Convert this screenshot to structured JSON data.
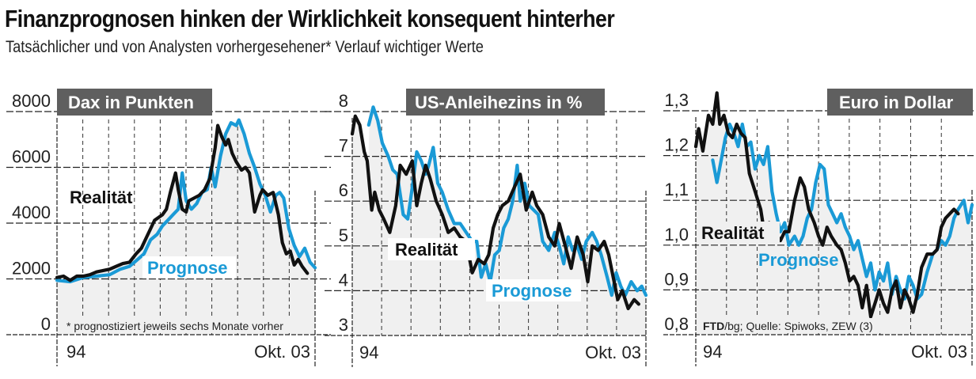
{
  "header": {
    "title": "Finanzprognosen hinken der Wirklichkeit konsequent hinterher",
    "subtitle": "Tatsächlicher und von Analysten vorhergesehener* Verlauf wichtiger Werte"
  },
  "colors": {
    "realitaet": "#111111",
    "prognose": "#1a9ad6",
    "badge": "#5f5f5f",
    "fill": "#f0f0f0"
  },
  "chart_data": [
    {
      "type": "line",
      "title": "Dax in Punkten",
      "xlabel": "",
      "ylabel": "",
      "x_start_label": "94",
      "x_end_label": "Okt. 03",
      "x_range": [
        1994.0,
        2003.79
      ],
      "ylim": [
        0,
        8000
      ],
      "yticks": [
        0,
        2000,
        4000,
        6000,
        8000
      ],
      "ytick_labels": [
        "0",
        "2000",
        "4000",
        "6000",
        "8000"
      ],
      "grid": true,
      "legend_labels": {
        "realitaet": "Realität",
        "prognose": "Prognose"
      },
      "footnote": "* prognostiziert jeweils sechs Monate vorher",
      "series": [
        {
          "name": "Realität",
          "x": [
            1994.0,
            1994.25,
            1994.5,
            1994.75,
            1995.0,
            1995.25,
            1995.5,
            1995.75,
            1996.0,
            1996.25,
            1996.5,
            1996.75,
            1997.0,
            1997.2,
            1997.4,
            1997.55,
            1997.7,
            1997.85,
            1998.0,
            1998.15,
            1998.3,
            1998.5,
            1998.6,
            1998.75,
            1998.9,
            1999.0,
            1999.2,
            1999.4,
            1999.6,
            1999.8,
            2000.0,
            2000.1,
            2000.25,
            2000.4,
            2000.5,
            2000.65,
            2000.8,
            2001.0,
            2001.15,
            2001.3,
            2001.5,
            2001.7,
            2001.8,
            2002.0,
            2002.2,
            2002.4,
            2002.55,
            2002.7,
            2002.85,
            2003.0,
            2003.15,
            2003.3,
            2003.5
          ],
          "values": [
            2050,
            2100,
            1950,
            2100,
            2100,
            2150,
            2250,
            2300,
            2350,
            2450,
            2550,
            2600,
            2900,
            3100,
            3500,
            3800,
            4100,
            4200,
            4300,
            4500,
            5100,
            5800,
            5200,
            4500,
            4400,
            4800,
            4900,
            5000,
            5200,
            5600,
            6700,
            7500,
            7100,
            6800,
            7000,
            6500,
            6200,
            5900,
            6000,
            5800,
            4400,
            5000,
            5200,
            5000,
            5100,
            4300,
            3300,
            2900,
            3000,
            2500,
            2700,
            2450,
            2200
          ]
        },
        {
          "name": "Prognose",
          "x": [
            1994.0,
            1994.5,
            1995.0,
            1995.5,
            1996.0,
            1996.4,
            1996.75,
            1997.0,
            1997.3,
            1997.55,
            1997.8,
            1998.0,
            1998.2,
            1998.4,
            1998.6,
            1998.75,
            1998.9,
            1999.1,
            1999.3,
            1999.5,
            1999.7,
            1999.85,
            2000.0,
            2000.2,
            2000.4,
            2000.6,
            2000.8,
            2000.9,
            2001.1,
            2001.3,
            2001.5,
            2001.7,
            2001.9,
            2002.1,
            2002.3,
            2002.45,
            2002.6,
            2002.8,
            2003.0,
            2003.2,
            2003.4,
            2003.6,
            2003.79
          ],
          "values": [
            1950,
            1900,
            2050,
            2100,
            2150,
            2350,
            2450,
            2650,
            2900,
            3400,
            3600,
            3900,
            4100,
            4300,
            4500,
            5800,
            4800,
            4500,
            4700,
            5100,
            5200,
            6000,
            5300,
            6400,
            7200,
            7600,
            7500,
            7700,
            7200,
            6500,
            6000,
            5400,
            5000,
            4400,
            5000,
            5100,
            4900,
            3800,
            3200,
            2800,
            3100,
            2600,
            2400
          ]
        }
      ]
    },
    {
      "type": "line",
      "title": "US-Anleihezins in %",
      "xlabel": "",
      "ylabel": "",
      "x_start_label": "94",
      "x_end_label": "Okt. 03",
      "x_range": [
        1994.0,
        2003.79
      ],
      "ylim": [
        3,
        8
      ],
      "yticks": [
        3,
        4,
        5,
        6,
        7,
        8
      ],
      "ytick_labels": [
        "3",
        "4",
        "5",
        "6",
        "7",
        "8"
      ],
      "grid": true,
      "legend_labels": {
        "realitaet": "Realität",
        "prognose": "Prognose"
      },
      "series": [
        {
          "name": "Realität",
          "x": [
            1994.0,
            1994.1,
            1994.25,
            1994.4,
            1994.5,
            1994.65,
            1994.75,
            1994.9,
            1995.05,
            1995.25,
            1995.45,
            1995.6,
            1995.8,
            1996.0,
            1996.15,
            1996.3,
            1996.45,
            1996.6,
            1996.8,
            1997.0,
            1997.2,
            1997.4,
            1997.6,
            1997.8,
            1998.0,
            1998.2,
            1998.4,
            1998.55,
            1998.7,
            1998.85,
            1999.0,
            1999.2,
            1999.4,
            1999.6,
            1999.8,
            2000.0,
            2000.15,
            2000.35,
            2000.55,
            2000.75,
            2000.9,
            2001.1,
            2001.3,
            2001.5,
            2001.7,
            2001.85,
            2002.0,
            2002.2,
            2002.4,
            2002.55,
            2002.7,
            2002.85,
            2003.0,
            2003.2,
            2003.4,
            2003.55
          ],
          "values": [
            7.5,
            7.9,
            7.7,
            7.1,
            6.9,
            5.8,
            6.2,
            5.8,
            5.6,
            5.3,
            5.9,
            6.8,
            6.6,
            6.9,
            5.9,
            6.4,
            6.8,
            6.5,
            6.0,
            5.7,
            5.3,
            5.4,
            5.2,
            5.1,
            4.4,
            4.7,
            4.6,
            4.8,
            5.4,
            5.7,
            5.9,
            6.0,
            6.3,
            6.6,
            5.8,
            6.2,
            5.9,
            5.7,
            5.2,
            5.0,
            5.5,
            5.0,
            4.5,
            5.2,
            4.8,
            4.2,
            5.0,
            4.9,
            5.1,
            4.8,
            4.3,
            3.8,
            4.0,
            3.6,
            3.8,
            3.7
          ]
        },
        {
          "name": "Prognose",
          "x": [
            1994.55,
            1994.7,
            1994.85,
            1995.0,
            1995.2,
            1995.35,
            1995.5,
            1995.7,
            1995.85,
            1996.0,
            1996.15,
            1996.3,
            1996.45,
            1996.55,
            1996.7,
            1996.85,
            1997.0,
            1997.2,
            1997.4,
            1997.6,
            1997.8,
            1998.0,
            1998.15,
            1998.3,
            1998.45,
            1998.6,
            1998.75,
            1998.9,
            1999.05,
            1999.2,
            1999.35,
            1999.5,
            1999.6,
            1999.75,
            1999.9,
            2000.05,
            2000.2,
            2000.35,
            2000.55,
            2000.75,
            2000.9,
            2001.05,
            2001.2,
            2001.35,
            2001.5,
            2001.65,
            2001.8,
            2002.0,
            2002.15,
            2002.3,
            2002.5,
            2002.65,
            2002.8,
            2002.95,
            2003.1,
            2003.3,
            2003.5,
            2003.65,
            2003.79
          ],
          "values": [
            7.7,
            8.1,
            7.8,
            7.3,
            7.0,
            6.7,
            6.6,
            5.7,
            5.6,
            6.3,
            7.1,
            6.9,
            6.6,
            6.8,
            7.2,
            6.4,
            6.2,
            5.8,
            5.5,
            5.5,
            5.3,
            5.1,
            5.1,
            4.3,
            4.6,
            4.2,
            4.8,
            4.9,
            5.4,
            5.6,
            6.0,
            6.8,
            6.0,
            6.4,
            5.9,
            5.8,
            5.7,
            5.1,
            4.9,
            5.3,
            5.0,
            4.6,
            5.2,
            4.9,
            5.0,
            4.7,
            5.1,
            5.3,
            5.1,
            4.8,
            4.3,
            3.9,
            4.4,
            4.1,
            3.9,
            4.2,
            4.0,
            4.1,
            3.9
          ]
        }
      ]
    },
    {
      "type": "line",
      "title": "Euro in Dollar",
      "xlabel": "",
      "ylabel": "",
      "x_start_label": "94",
      "x_end_label": "Okt. 03",
      "x_range": [
        1994.0,
        2003.79
      ],
      "ylim": [
        0.8,
        1.3
      ],
      "yticks": [
        0.8,
        0.9,
        1.0,
        1.1,
        1.2,
        1.3
      ],
      "ytick_labels": [
        "0,8",
        "0,9",
        "1,0",
        "1,1",
        "1,2",
        "1,3"
      ],
      "grid": true,
      "legend_labels": {
        "realitaet": "Realität",
        "prognose": "Prognose"
      },
      "footnote_bold": "FTD",
      "footnote": "/bg; Quelle: Spiwoks, ZEW (3)",
      "series": [
        {
          "name": "Realität",
          "x": [
            1994.0,
            1994.1,
            1994.25,
            1994.45,
            1994.6,
            1994.75,
            1994.85,
            1995.0,
            1995.15,
            1995.3,
            1995.45,
            1995.6,
            1995.75,
            1995.9,
            1996.1,
            1996.3,
            1996.45,
            1996.6,
            1996.8,
            1997.0,
            1997.15,
            1997.3,
            1997.5,
            1997.7,
            1997.85,
            1998.0,
            1998.2,
            1998.35,
            1998.5,
            1998.65,
            1998.8,
            1999.0,
            1999.15,
            1999.3,
            1999.45,
            1999.6,
            1999.75,
            1999.9,
            2000.05,
            2000.2,
            2000.35,
            2000.5,
            2000.65,
            2000.8,
            2000.95,
            2001.1,
            2001.25,
            2001.4,
            2001.55,
            2001.7,
            2001.85,
            2002.0,
            2002.2,
            2002.4,
            2002.55,
            2002.7,
            2002.85,
            2003.0,
            2003.15,
            2003.3
          ],
          "values": [
            1.22,
            1.26,
            1.21,
            1.29,
            1.27,
            1.34,
            1.27,
            1.29,
            1.25,
            1.24,
            1.27,
            1.25,
            1.24,
            1.16,
            1.12,
            1.08,
            1.02,
            1.05,
            1.03,
            1.01,
            1.03,
            1.03,
            1.1,
            1.15,
            1.13,
            1.08,
            1.05,
            1.02,
            1.0,
            1.04,
            1.02,
            1.0,
            0.99,
            0.96,
            0.92,
            0.93,
            0.91,
            0.86,
            0.91,
            0.84,
            0.87,
            0.9,
            0.87,
            0.85,
            0.9,
            0.92,
            0.86,
            0.9,
            0.88,
            0.85,
            0.89,
            0.95,
            0.98,
            0.98,
            0.99,
            1.04,
            1.06,
            1.07,
            1.08,
            1.07
          ]
        },
        {
          "name": "Prognose",
          "x": [
            1994.6,
            1994.75,
            1994.9,
            1995.05,
            1995.2,
            1995.35,
            1995.5,
            1995.65,
            1995.8,
            1995.95,
            1996.1,
            1996.25,
            1996.4,
            1996.55,
            1996.7,
            1996.85,
            1997.0,
            1997.15,
            1997.3,
            1997.5,
            1997.65,
            1997.8,
            1997.95,
            1998.1,
            1998.25,
            1998.4,
            1998.55,
            1998.7,
            1998.85,
            1999.0,
            1999.15,
            1999.3,
            1999.45,
            1999.6,
            1999.75,
            1999.9,
            2000.05,
            2000.2,
            2000.35,
            2000.5,
            2000.65,
            2000.8,
            2000.95,
            2001.1,
            2001.25,
            2001.4,
            2001.55,
            2001.7,
            2001.85,
            2002.0,
            2002.2,
            2002.4,
            2002.55,
            2002.7,
            2002.85,
            2003.0,
            2003.15,
            2003.3,
            2003.5,
            2003.65,
            2003.79
          ],
          "values": [
            1.19,
            1.14,
            1.19,
            1.24,
            1.27,
            1.25,
            1.22,
            1.27,
            1.22,
            1.23,
            1.17,
            1.2,
            1.18,
            1.22,
            1.12,
            1.07,
            1.03,
            1.05,
            1.0,
            1.02,
            1.0,
            1.02,
            1.06,
            1.08,
            1.14,
            1.18,
            1.17,
            1.09,
            1.07,
            1.05,
            1.07,
            1.04,
            1.02,
            0.99,
            1.01,
            0.97,
            0.93,
            0.96,
            0.9,
            0.94,
            0.92,
            0.96,
            0.89,
            0.93,
            0.9,
            0.88,
            0.93,
            0.91,
            0.88,
            0.89,
            0.94,
            0.98,
            0.99,
            1.01,
            1.0,
            1.02,
            1.06,
            1.08,
            1.1,
            1.05,
            1.09
          ]
        }
      ]
    }
  ]
}
